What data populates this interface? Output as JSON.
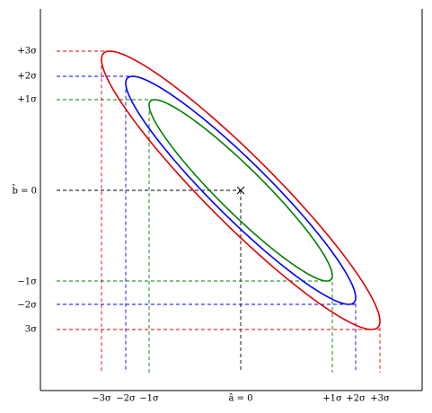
{
  "y_labels": [
    "+3σ",
    "+2σ",
    "+1σ",
    "b̂ = 0",
    "−1σ",
    "−2σ",
    "3σ"
  ],
  "x_labels": [
    "−3σ",
    "−2σ",
    "−1σ",
    "â = 0",
    "+1σ",
    "+2σ",
    "+3σ"
  ]
}
